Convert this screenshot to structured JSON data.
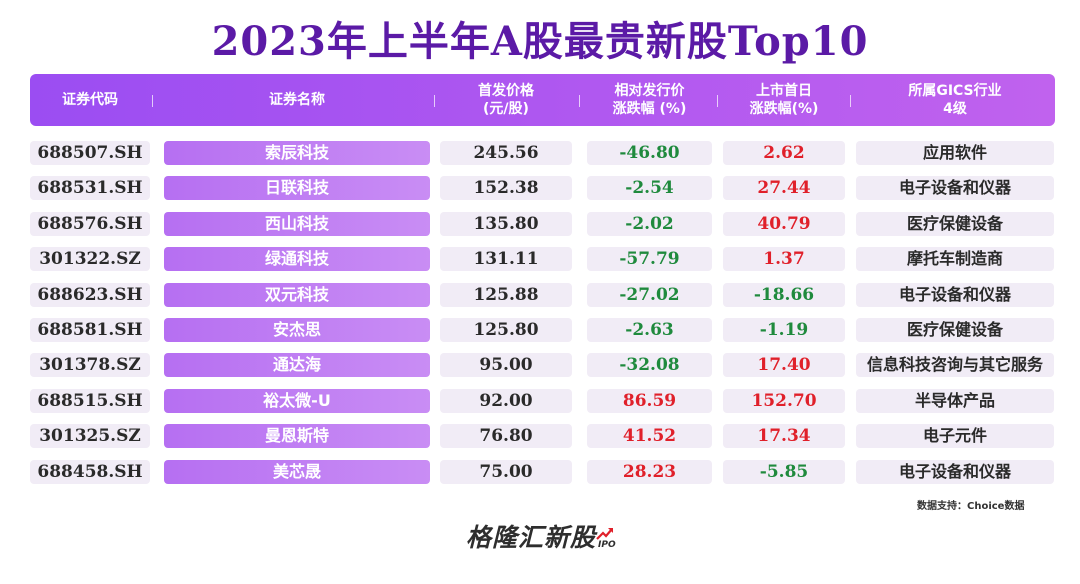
{
  "title": "2023年上半年A股最贵新股Top10",
  "header": {
    "code": "证券代码",
    "name": "证券名称",
    "price_line1": "首发价格",
    "price_line2": "(元/股)",
    "rel_line1": "相对发行价",
    "rel_line2": "涨跌幅 (%)",
    "first_line1": "上市首日",
    "first_line2": "涨跌幅(%)",
    "ind_line1": "所属GICS行业",
    "ind_line2": "4级"
  },
  "chart_data": {
    "type": "table",
    "columns": [
      "证券代码",
      "证券名称",
      "首发价格(元/股)",
      "相对发行价涨跌幅(%)",
      "上市首日涨跌幅(%)",
      "所属GICS行业4级"
    ],
    "rows": [
      {
        "code": "688507.SH",
        "name": "索辰科技",
        "price": "245.56",
        "rel": "-46.80",
        "first": "2.62",
        "industry": "应用软件"
      },
      {
        "code": "688531.SH",
        "name": "日联科技",
        "price": "152.38",
        "rel": "-2.54",
        "first": "27.44",
        "industry": "电子设备和仪器"
      },
      {
        "code": "688576.SH",
        "name": "西山科技",
        "price": "135.80",
        "rel": "-2.02",
        "first": "40.79",
        "industry": "医疗保健设备"
      },
      {
        "code": "301322.SZ",
        "name": "绿通科技",
        "price": "131.11",
        "rel": "-57.79",
        "first": "1.37",
        "industry": "摩托车制造商"
      },
      {
        "code": "688623.SH",
        "name": "双元科技",
        "price": "125.88",
        "rel": "-27.02",
        "first": "-18.66",
        "industry": "电子设备和仪器"
      },
      {
        "code": "688581.SH",
        "name": "安杰思",
        "price": "125.80",
        "rel": "-2.63",
        "first": "-1.19",
        "industry": "医疗保健设备"
      },
      {
        "code": "301378.SZ",
        "name": "通达海",
        "price": "95.00",
        "rel": "-32.08",
        "first": "17.40",
        "industry": "信息科技咨询与其它服务"
      },
      {
        "code": "688515.SH",
        "name": "裕太微-U",
        "price": "92.00",
        "rel": "86.59",
        "first": "152.70",
        "industry": "半导体产品"
      },
      {
        "code": "301325.SZ",
        "name": "曼恩斯特",
        "price": "76.80",
        "rel": "41.52",
        "first": "17.34",
        "industry": "电子元件"
      },
      {
        "code": "688458.SH",
        "name": "美芯晟",
        "price": "75.00",
        "rel": "28.23",
        "first": "-5.85",
        "industry": "电子设备和仪器"
      }
    ]
  },
  "source": "数据支持：Choice数据",
  "logo": {
    "text": "格隆汇新股",
    "sub": "IPO"
  },
  "colors": {
    "title": "#5b1aa6",
    "header": "#a652f1",
    "negative": "#1f8a3d",
    "positive": "#e0202a",
    "cell_bg": "#f1ecf6"
  }
}
